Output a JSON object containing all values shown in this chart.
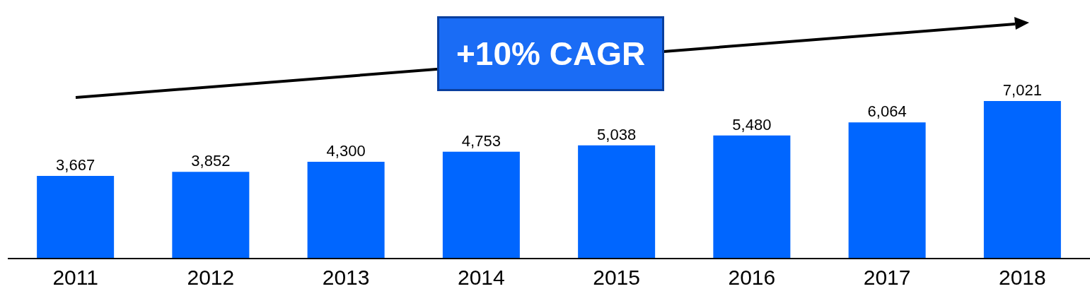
{
  "chart_data": {
    "type": "bar",
    "categories": [
      "2011",
      "2012",
      "2013",
      "2014",
      "2015",
      "2016",
      "2017",
      "2018"
    ],
    "values": [
      3667,
      3852,
      4300,
      4753,
      5038,
      5480,
      6064,
      7021
    ],
    "color": "#0066ff",
    "data_labels": true,
    "value_labels": [
      "3,667",
      "3,852",
      "4,300",
      "4,753",
      "5,038",
      "5,480",
      "6,064",
      "7,021"
    ],
    "grid": false,
    "legend": false,
    "annotations": [
      "+10% CAGR"
    ]
  }
}
